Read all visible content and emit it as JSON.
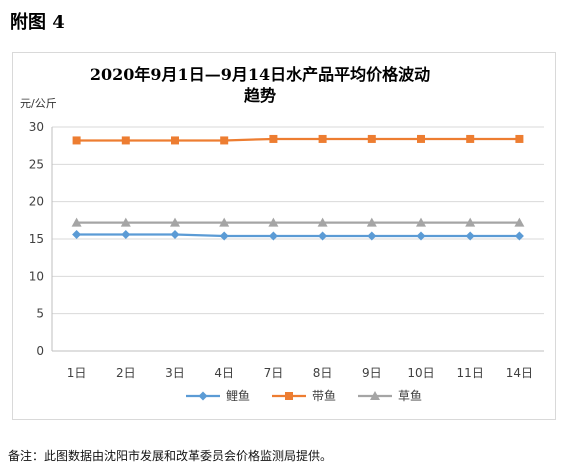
{
  "figure_label": "附图 4",
  "footnote": "备注：此图数据由沈阳市发展和改革委员会价格监测局提供。",
  "chart_data": {
    "type": "line",
    "title_line1": "2020年9月1日—9月14日水产品平均价格波动",
    "title_line2": "趋势",
    "ylabel": "元/公斤",
    "xlabel": "",
    "ylim": [
      0,
      30
    ],
    "yticks": [
      0,
      5,
      10,
      15,
      20,
      25,
      30
    ],
    "grid": true,
    "legend_position": "bottom",
    "categories": [
      "1日",
      "2日",
      "3日",
      "4日",
      "7日",
      "8日",
      "9日",
      "10日",
      "11日",
      "14日"
    ],
    "series": [
      {
        "name": "鲤鱼",
        "color": "#5b9bd5",
        "marker": "diamond",
        "values": [
          15.6,
          15.6,
          15.6,
          15.4,
          15.4,
          15.4,
          15.4,
          15.4,
          15.4,
          15.4
        ]
      },
      {
        "name": "带鱼",
        "color": "#ed7d31",
        "marker": "square",
        "values": [
          28.2,
          28.2,
          28.2,
          28.2,
          28.4,
          28.4,
          28.4,
          28.4,
          28.4,
          28.4
        ]
      },
      {
        "name": "草鱼",
        "color": "#a5a5a5",
        "marker": "triangle",
        "values": [
          17.2,
          17.2,
          17.2,
          17.2,
          17.2,
          17.2,
          17.2,
          17.2,
          17.2,
          17.2
        ]
      }
    ]
  }
}
